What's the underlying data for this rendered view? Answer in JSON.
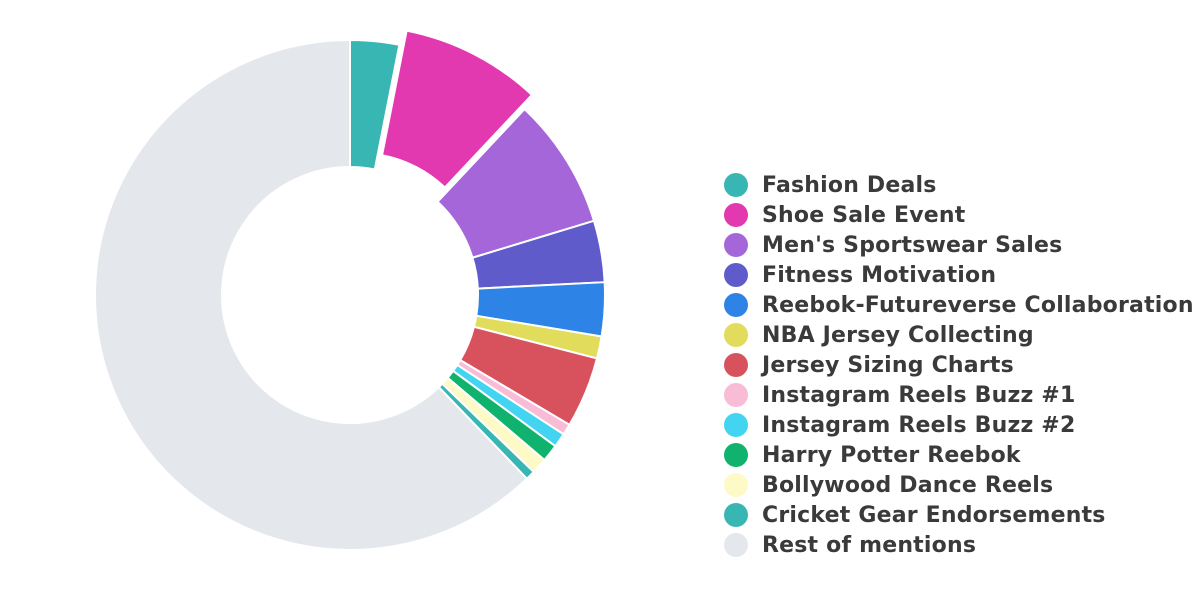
{
  "chart_data": {
    "type": "pie",
    "donut": true,
    "legend_position": "right",
    "series": [
      {
        "name": "Fashion Deals",
        "value": 3.1,
        "color": "#38b6b4"
      },
      {
        "name": "Shoe Sale Event",
        "value": 8.9,
        "color": "#e239b0",
        "exploded": true
      },
      {
        "name": "Men's Sportswear Sales",
        "value": 8.3,
        "color": "#a466d8"
      },
      {
        "name": "Fitness Motivation",
        "value": 3.9,
        "color": "#5f5bcb"
      },
      {
        "name": "Reebok-Futureverse Collaboration",
        "value": 3.4,
        "color": "#2e84e6"
      },
      {
        "name": "NBA Jersey Collecting",
        "value": 1.4,
        "color": "#e1dc5c"
      },
      {
        "name": "Jersey Sizing Charts",
        "value": 4.5,
        "color": "#d8525e"
      },
      {
        "name": "Instagram Reels Buzz #1",
        "value": 0.7,
        "color": "#f8bcd7"
      },
      {
        "name": "Instagram Reels Buzz #2",
        "value": 0.9,
        "color": "#42d4f0"
      },
      {
        "name": "Harry Potter Reebok",
        "value": 1.1,
        "color": "#10b36d"
      },
      {
        "name": "Bollywood Dance Reels",
        "value": 1.0,
        "color": "#fdfac7"
      },
      {
        "name": "Cricket Gear Endorsements",
        "value": 0.6,
        "color": "#38b6b4"
      },
      {
        "name": "Rest of mentions",
        "value": 62.2,
        "color": "#e4e8ec"
      }
    ]
  }
}
